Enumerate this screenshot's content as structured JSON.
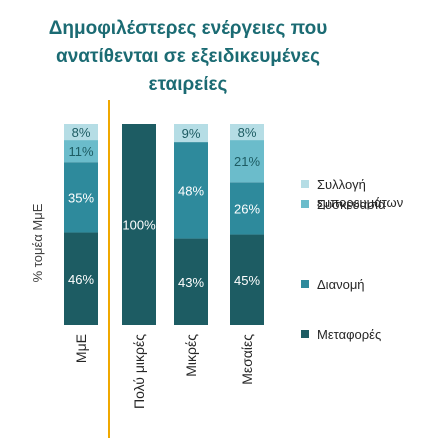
{
  "chart_data": {
    "type": "bar",
    "stacked": true,
    "title_lines": [
      "Δημοφιλέστερες ενέργειες που",
      "ανατίθενται σε εξειδικευμένες",
      "εταιρείες"
    ],
    "ylabel": "% τομέα ΜμΕ",
    "categories": [
      "ΜμΕ",
      "Πολύ μικρές",
      "Μικρές",
      "Μεσαίες"
    ],
    "series": [
      {
        "name": "Μεταφορές",
        "color": "#1d5c63",
        "values": [
          46,
          100,
          43,
          45
        ],
        "labels": [
          "46%",
          "100%",
          "43%",
          "45%"
        ]
      },
      {
        "name": "Διανομή",
        "color": "#2e8a9c",
        "values": [
          35,
          0,
          48,
          26
        ],
        "labels": [
          "35%",
          "",
          "48%",
          "26%"
        ]
      },
      {
        "name": "Συσκευασία",
        "color": "#6bbccb",
        "values": [
          11,
          0,
          0,
          21
        ],
        "labels": [
          "11%",
          "",
          "",
          "21%"
        ]
      },
      {
        "name": "Συλλογή εμπορευμάτων",
        "color": "#b5dde5",
        "values": [
          8,
          0,
          9,
          8
        ],
        "labels": [
          "8%",
          "",
          "9%",
          "8%"
        ]
      }
    ],
    "legend_lines": [
      [
        "Συλλογή",
        "εμπορευμάτων"
      ],
      [
        "Συσκευασία"
      ],
      [
        "Διανομή"
      ],
      [
        "Μεταφορές"
      ]
    ],
    "legend_position": "right",
    "ylim": [
      0,
      100
    ],
    "separator_color": "#f0a800",
    "grid": false
  }
}
